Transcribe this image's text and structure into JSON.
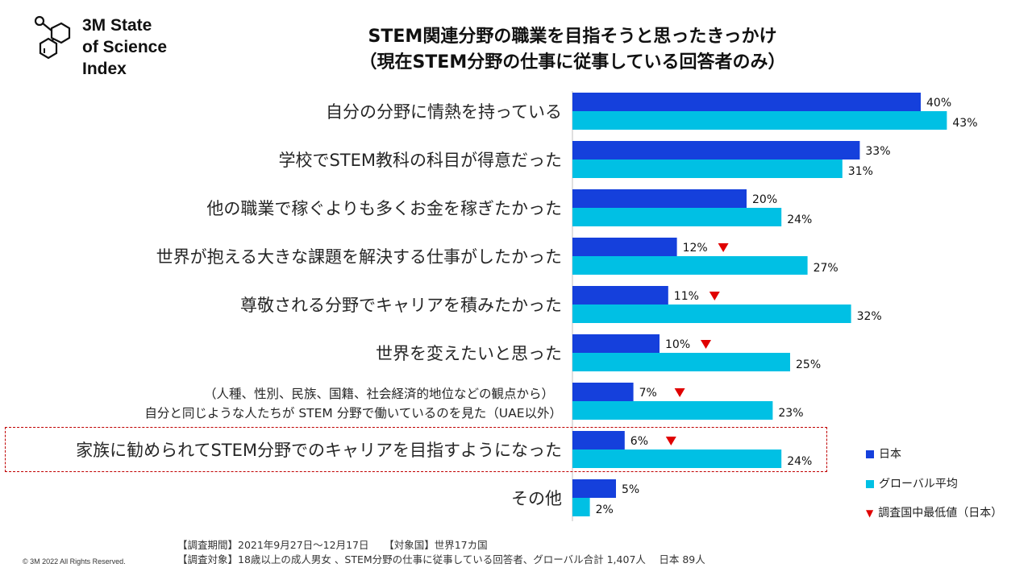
{
  "logo": {
    "line1": "3M State",
    "line2": "of Science",
    "line3": "Index"
  },
  "title": {
    "line1": "STEM関連分野の職業を目指そうと思ったきっかけ",
    "line2": "（現在STEM分野の仕事に従事している回答者のみ）"
  },
  "colors": {
    "japan": "#1540dc",
    "global": "#00c0e4",
    "marker": "#e00000",
    "highlight": "#c00000"
  },
  "chart_data": {
    "type": "bar",
    "orientation": "horizontal",
    "title": "STEM関連分野の職業を目指そうと思ったきっかけ（現在STEM分野の仕事に従事している回答者のみ）",
    "categories": [
      [
        "自分の分野に情熱を持っている"
      ],
      [
        "学校でSTEM教科の科目が得意だった"
      ],
      [
        "他の職業で稼ぐよりも多くお金を稼ぎたかった"
      ],
      [
        "世界が抱える大きな課題を解決する仕事がしたかった"
      ],
      [
        "尊敬される分野でキャリアを積みたかった"
      ],
      [
        "世界を変えたいと思った"
      ],
      [
        "（人種、性別、民族、国籍、社会経済的地位などの観点から）",
        "自分と同じような人たちが STEM 分野で働いているのを見た（UAE以外）"
      ],
      [
        "家族に勧められてSTEM分野でのキャリアを目指すようになった"
      ],
      [
        "その他"
      ]
    ],
    "series": [
      {
        "name": "日本",
        "values": [
          40,
          33,
          20,
          12,
          11,
          10,
          7,
          6,
          5
        ],
        "labels": [
          "40%",
          "33%",
          "20%",
          "12%",
          "11%",
          "10%",
          "7%",
          "6%",
          "5%"
        ],
        "lowest_marker": [
          false,
          false,
          false,
          true,
          true,
          true,
          true,
          true,
          false
        ]
      },
      {
        "name": "グローバル平均",
        "values": [
          43,
          31,
          24,
          27,
          32,
          25,
          23,
          24,
          2
        ],
        "labels": [
          "43%",
          "31%",
          "24%",
          "27%",
          "32%",
          "25%",
          "23%",
          "24%",
          "2%"
        ]
      }
    ],
    "highlighted_category_index": 7,
    "xlim": [
      0,
      50
    ]
  },
  "legend": {
    "japan": "日本",
    "global": "グローバル平均",
    "marker": "調査国中最低値（日本）",
    "marker_symbol": "▼"
  },
  "footer": {
    "line1": "【調査期間】2021年9月27日～12月17日　　【対象国】世界17カ国",
    "line2": "【調査対象】18歳以上の成人男女 、STEM分野の仕事に従事している回答者、グローバル合計 1,407人　 日本 89人"
  },
  "copyright": "© 3M  2022    All Rights Reserved."
}
